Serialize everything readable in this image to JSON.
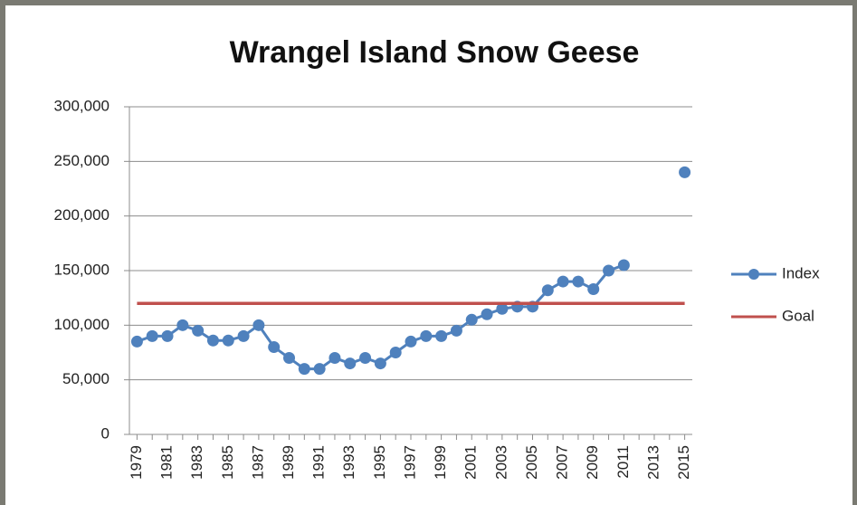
{
  "chart_data": {
    "type": "line",
    "title": "Wrangel Island Snow Geese",
    "categories": [
      "1979",
      null,
      "1981",
      null,
      "1983",
      null,
      "1985",
      null,
      "1987",
      null,
      "1989",
      null,
      "1991",
      null,
      "1993",
      null,
      "1995",
      null,
      "1997",
      null,
      "1999",
      null,
      "2001",
      null,
      "2003",
      null,
      "2005",
      null,
      "2007",
      null,
      "2009",
      null,
      "2011",
      null,
      "2013",
      null,
      "2015"
    ],
    "series": [
      {
        "name": "Index",
        "color": "#4f81bd",
        "marker": true,
        "values": [
          85000,
          90000,
          90000,
          100000,
          95000,
          86000,
          86000,
          90000,
          100000,
          80000,
          70000,
          60000,
          60000,
          70000,
          65000,
          70000,
          65000,
          75000,
          85000,
          90000,
          90000,
          95000,
          105000,
          110000,
          115000,
          117000,
          117000,
          132000,
          140000,
          140000,
          133000,
          150000,
          155000,
          null,
          null,
          null,
          240000
        ]
      },
      {
        "name": "Goal",
        "color": "#c0504d",
        "marker": false,
        "values": [
          120000,
          120000,
          120000,
          120000,
          120000,
          120000,
          120000,
          120000,
          120000,
          120000,
          120000,
          120000,
          120000,
          120000,
          120000,
          120000,
          120000,
          120000,
          120000,
          120000,
          120000,
          120000,
          120000,
          120000,
          120000,
          120000,
          120000,
          120000,
          120000,
          120000,
          120000,
          120000,
          120000,
          120000,
          120000,
          120000,
          120000
        ]
      }
    ],
    "ylim": [
      0,
      300000
    ],
    "yticks": [
      0,
      {
        "value": 50000,
        "label": "50,000"
      },
      {
        "value": 100000,
        "label": "100,000"
      },
      {
        "value": 150000,
        "label": "150,000"
      },
      {
        "value": 200000,
        "label": "200,000"
      },
      {
        "value": 250000,
        "label": "250,000"
      },
      {
        "value": 300000,
        "label": "300,000"
      }
    ],
    "grid": true,
    "legend": "right"
  }
}
